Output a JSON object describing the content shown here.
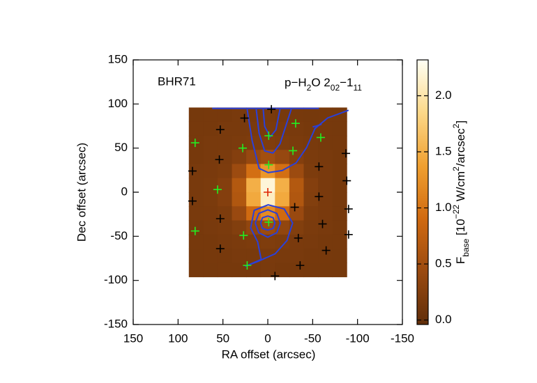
{
  "chart_data": {
    "type": "map",
    "xlabel": "RA offset (arcsec)",
    "ylabel": "Dec offset (arcsec)",
    "xlim": [
      150,
      -150
    ],
    "ylim": [
      -150,
      150
    ],
    "xticks": [
      150,
      100,
      50,
      0,
      -50,
      -100,
      -150
    ],
    "yticks": [
      -150,
      -100,
      -50,
      0,
      50,
      100,
      150
    ],
    "source_label": "BHR71",
    "line_label": [
      "p−H",
      "2",
      "O 2",
      "02",
      "−1",
      "11"
    ],
    "image": {
      "x_range": [
        88,
        -88
      ],
      "y_range": [
        96,
        -96
      ],
      "values": [
        [
          0.14,
          0.15,
          0.15,
          0.16,
          0.15,
          0.16,
          0.15,
          0.15,
          0.14,
          0.15,
          0.14
        ],
        [
          0.15,
          0.15,
          0.16,
          0.16,
          0.17,
          0.18,
          0.17,
          0.16,
          0.15,
          0.15,
          0.14
        ],
        [
          0.15,
          0.16,
          0.16,
          0.18,
          0.2,
          0.22,
          0.2,
          0.18,
          0.16,
          0.15,
          0.15
        ],
        [
          0.15,
          0.16,
          0.18,
          0.25,
          0.4,
          0.5,
          0.4,
          0.25,
          0.18,
          0.16,
          0.15
        ],
        [
          0.16,
          0.17,
          0.2,
          0.45,
          0.95,
          1.3,
          0.95,
          0.45,
          0.2,
          0.17,
          0.15
        ],
        [
          0.16,
          0.18,
          0.25,
          0.65,
          1.5,
          2.2,
          1.5,
          0.65,
          0.25,
          0.17,
          0.15
        ],
        [
          0.16,
          0.18,
          0.25,
          0.62,
          1.45,
          2.1,
          1.45,
          0.62,
          0.24,
          0.17,
          0.15
        ],
        [
          0.16,
          0.17,
          0.2,
          0.42,
          0.9,
          1.2,
          0.9,
          0.42,
          0.2,
          0.17,
          0.15
        ],
        [
          0.15,
          0.16,
          0.18,
          0.24,
          0.36,
          0.45,
          0.36,
          0.24,
          0.18,
          0.16,
          0.15
        ],
        [
          0.15,
          0.15,
          0.16,
          0.18,
          0.2,
          0.21,
          0.2,
          0.17,
          0.16,
          0.15,
          0.15
        ],
        [
          0.14,
          0.15,
          0.15,
          0.16,
          0.16,
          0.17,
          0.16,
          0.16,
          0.15,
          0.15,
          0.14
        ],
        [
          0.14,
          0.14,
          0.15,
          0.15,
          0.15,
          0.16,
          0.15,
          0.15,
          0.14,
          0.14,
          0.14
        ]
      ]
    },
    "colormap": [
      "#602e0a",
      "#9a4a10",
      "#d06a10",
      "#f0a030",
      "#fcd888",
      "#fffff4"
    ],
    "clim": [
      -0.04,
      2.32
    ],
    "colorbar_ticks": [
      {
        "value": 0,
        "label": "0.0"
      },
      0.5,
      {
        "value": 1,
        "label": "1.0"
      },
      1.5,
      {
        "value": 2,
        "label": "2.0"
      }
    ],
    "colorbar_label": [
      "F",
      "base",
      " [10",
      "−22",
      " W/cm",
      "2",
      "/arcsec",
      "2",
      "]"
    ],
    "contour_color": "#2a40d8",
    "contours": [
      {
        "x": [
          62,
          -57
        ],
        "y": [
          95,
          95
        ]
      },
      {
        "x": [
          23,
          17.5,
          9.7,
          -0.4,
          -16,
          -31.6,
          -43.3,
          -52.6,
          -66.6,
          -90
        ],
        "y": [
          94,
          58.7,
          27,
          22.2,
          24.6,
          33.3,
          50.8,
          72.2,
          84.1,
          92.9
        ]
      },
      {
        "x": [
          12.9,
          9.7,
          3.5,
          -5.8,
          -13.6,
          -19.9,
          -26.1
        ],
        "y": [
          94,
          66.7,
          46.8,
          44.4,
          54.8,
          74.6,
          94
        ]
      },
      {
        "x": [
          5.1,
          3.5,
          -2.7,
          -9,
          -12.1,
          -13.6
        ],
        "y": [
          94,
          74.6,
          62.7,
          70.6,
          86.5,
          94
        ]
      },
      {
        "x": [
          -50,
          -54,
          -60
        ],
        "y": [
          74,
          75,
          77
        ]
      },
      {
        "x": [
          25.3,
          7.4,
          11.3,
          19.1,
          15.2,
          -0.4,
          -18.3,
          -27.7,
          -21.4,
          -8.2,
          11.3,
          25.3
        ],
        "y": [
          -84.1,
          -76.2,
          -56.3,
          -40.5,
          -20.6,
          -14.3,
          -19,
          -34.9,
          -54.8,
          -69.8,
          -78.6,
          -84.1
        ]
      },
      {
        "x": [
          14,
          10,
          0,
          -10,
          -14,
          -10,
          0,
          10,
          14
        ],
        "y": [
          -35,
          -24,
          -20,
          -24,
          -35,
          -46,
          -51,
          -46,
          -35
        ]
      },
      {
        "x": [
          8,
          6,
          0,
          -6,
          -8,
          -6,
          0,
          6,
          8
        ],
        "y": [
          -35,
          -29,
          -27,
          -29,
          -35,
          -41,
          -43,
          -41,
          -35
        ]
      }
    ],
    "markers": [
      {
        "color": "#000000",
        "x": [
          -4,
          26,
          53,
          -87,
          54,
          84,
          -57,
          -88,
          -57,
          84,
          -30,
          53,
          -90,
          -61,
          -34,
          -90,
          53,
          -65,
          -36,
          -8
        ],
        "y": [
          94,
          84,
          71,
          44,
          37,
          24,
          29,
          13,
          -5,
          -10,
          -17,
          -30,
          -19,
          -36,
          -52,
          -48,
          -64,
          -66,
          -83,
          -95
        ]
      },
      {
        "color": "#22ee22",
        "x": [
          81,
          28,
          -1,
          -31,
          -59,
          -28,
          -1,
          56,
          -1,
          81,
          27,
          23
        ],
        "y": [
          56,
          50,
          64,
          78,
          62,
          47,
          31,
          3,
          -34,
          -44,
          -49,
          -83
        ]
      },
      {
        "color": "#dd2200",
        "x": [
          0
        ],
        "y": [
          0
        ]
      }
    ]
  }
}
